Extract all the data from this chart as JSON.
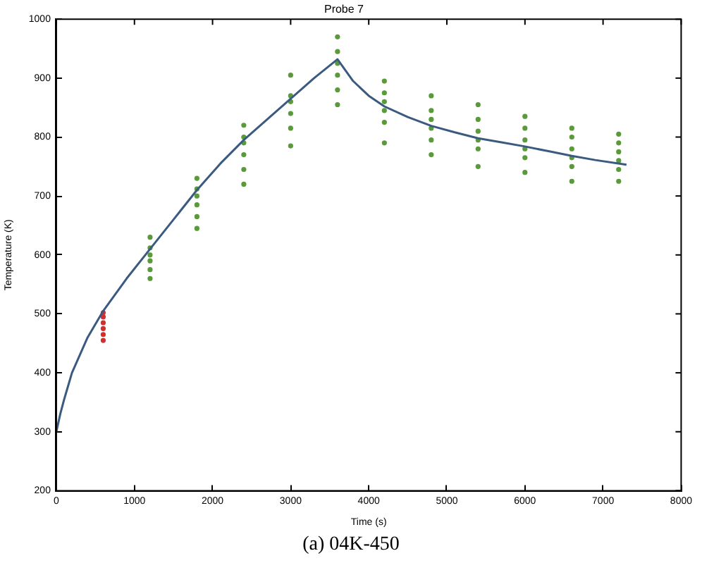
{
  "chart_data": {
    "type": "line",
    "title": "Probe 7",
    "xlabel": "Time (s)",
    "ylabel": "Temperature (K)",
    "annotations": [
      "(a) 04K-450"
    ],
    "xlim": [
      0,
      8000
    ],
    "xticks": [
      0,
      1000,
      2000,
      3000,
      4000,
      5000,
      6000,
      7000,
      8000
    ],
    "ylim": [
      200,
      1000
    ],
    "yticks": [
      200,
      300,
      400,
      500,
      600,
      700,
      800,
      900,
      1000
    ],
    "grid": false,
    "legend": false,
    "series": [
      {
        "color": "#3a5a80",
        "marker": "none",
        "x": [
          0,
          50,
          100,
          200,
          400,
          600,
          900,
          1200,
          1500,
          1800,
          2100,
          2400,
          2700,
          3000,
          3300,
          3600,
          3800,
          4000,
          4200,
          4500,
          4800,
          5100,
          5400,
          5700,
          6000,
          6300,
          6600,
          6900,
          7300
        ],
        "values": [
          300,
          330,
          355,
          400,
          460,
          505,
          560,
          610,
          660,
          710,
          755,
          795,
          830,
          865,
          900,
          932,
          895,
          870,
          852,
          834,
          819,
          808,
          798,
          791,
          784,
          776,
          768,
          761,
          753
        ]
      },
      {
        "type": "scatter",
        "color": "#d03030",
        "marker": "circle",
        "x": [
          600,
          600,
          600,
          600,
          600,
          600
        ],
        "values": [
          455,
          465,
          475,
          485,
          495,
          502
        ]
      },
      {
        "type": "scatter",
        "color": "#5a9a3a",
        "marker": "circle",
        "x": [
          1200,
          1200,
          1200,
          1200,
          1200,
          1200,
          1800,
          1800,
          1800,
          1800,
          1800,
          1800,
          2400,
          2400,
          2400,
          2400,
          2400,
          2400,
          3000,
          3000,
          3000,
          3000,
          3000,
          3000,
          3600,
          3600,
          3600,
          3600,
          3600,
          3600,
          4200,
          4200,
          4200,
          4200,
          4200,
          4200,
          4800,
          4800,
          4800,
          4800,
          4800,
          4800,
          5400,
          5400,
          5400,
          5400,
          5400,
          5400,
          6000,
          6000,
          6000,
          6000,
          6000,
          6000,
          6600,
          6600,
          6600,
          6600,
          6600,
          6600,
          7200,
          7200,
          7200,
          7200,
          7200,
          7200
        ],
        "values": [
          560,
          575,
          590,
          600,
          612,
          630,
          645,
          665,
          685,
          700,
          712,
          730,
          720,
          745,
          770,
          790,
          800,
          820,
          785,
          815,
          840,
          860,
          870,
          905,
          855,
          880,
          905,
          925,
          945,
          970,
          790,
          825,
          845,
          860,
          875,
          895,
          770,
          795,
          815,
          830,
          845,
          870,
          750,
          780,
          795,
          810,
          830,
          855,
          740,
          765,
          780,
          795,
          815,
          835,
          725,
          750,
          765,
          780,
          800,
          815,
          725,
          745,
          760,
          775,
          790,
          805
        ]
      }
    ]
  }
}
